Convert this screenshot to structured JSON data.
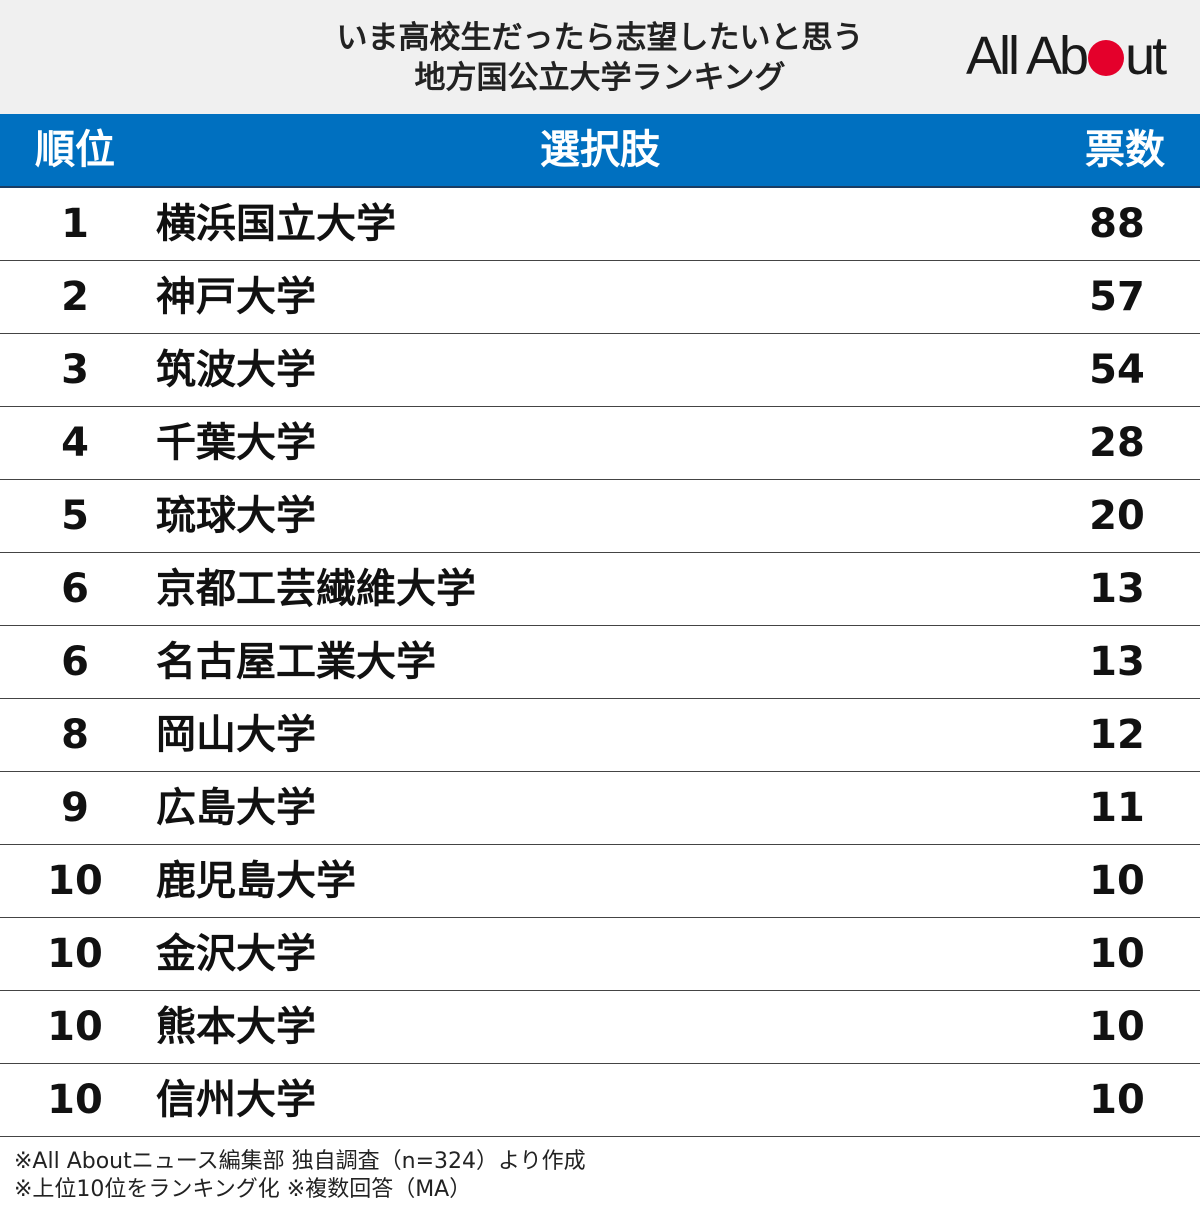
{
  "header": {
    "title_line1": "いま高校生だったら志望したいと思う",
    "title_line2": "地方国公立大学ランキング",
    "logo": "All About"
  },
  "colors": {
    "header_bg": "#0070c0",
    "logo_dot": "#e4002b"
  },
  "chart_data": {
    "type": "table",
    "columns": [
      "順位",
      "選択肢",
      "票数"
    ],
    "rows": [
      {
        "rank": "1",
        "name": "横浜国立大学",
        "votes": 88
      },
      {
        "rank": "2",
        "name": "神戸大学",
        "votes": 57
      },
      {
        "rank": "3",
        "name": "筑波大学",
        "votes": 54
      },
      {
        "rank": "4",
        "name": "千葉大学",
        "votes": 28
      },
      {
        "rank": "5",
        "name": "琉球大学",
        "votes": 20
      },
      {
        "rank": "6",
        "name": "京都工芸繊維大学",
        "votes": 13
      },
      {
        "rank": "6",
        "name": "名古屋工業大学",
        "votes": 13
      },
      {
        "rank": "8",
        "name": "岡山大学",
        "votes": 12
      },
      {
        "rank": "9",
        "name": "広島大学",
        "votes": 11
      },
      {
        "rank": "10",
        "name": "鹿児島大学",
        "votes": 10
      },
      {
        "rank": "10",
        "name": "金沢大学",
        "votes": 10
      },
      {
        "rank": "10",
        "name": "熊本大学",
        "votes": 10
      },
      {
        "rank": "10",
        "name": "信州大学",
        "votes": 10
      }
    ]
  },
  "notes": {
    "line1": "※All Aboutニュース編集部 独自調査（n=324）より作成",
    "line2": "※上位10位をランキング化 ※複数回答（MA）"
  }
}
